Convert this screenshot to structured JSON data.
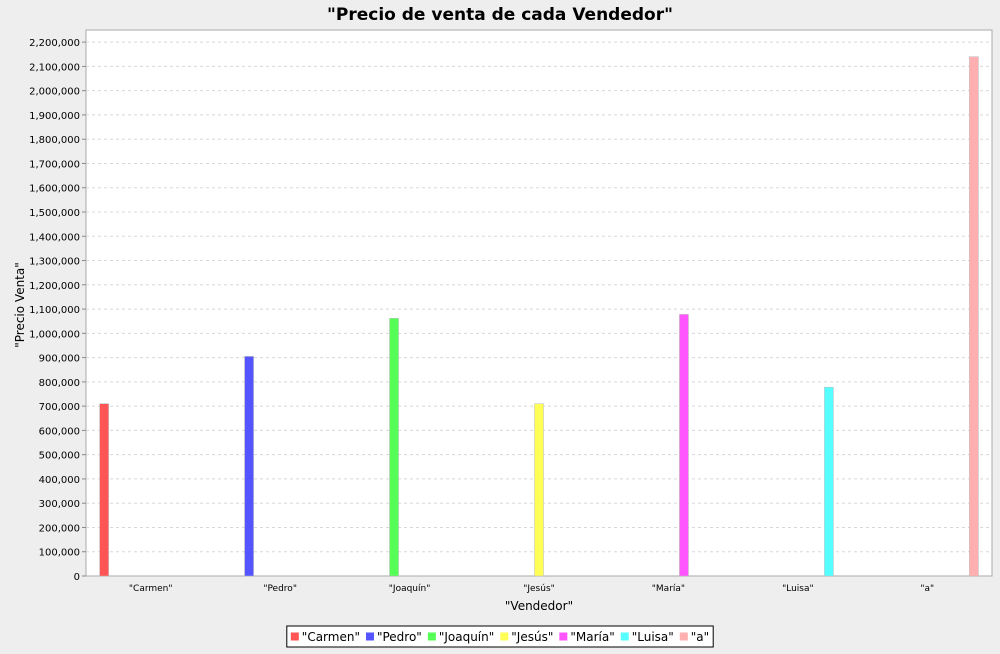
{
  "chart_data": {
    "type": "bar",
    "title": "\"Precio de venta de cada Vendedor\"",
    "xlabel": "\"Vendedor\"",
    "ylabel": "\"Precio Venta\"",
    "categories": [
      "\"Carmen\"",
      "\"Pedro\"",
      "\"Joaquín\"",
      "\"Jesús\"",
      "\"María\"",
      "\"Luisa\"",
      "\"a\""
    ],
    "series": [
      {
        "name": "\"Carmen\"",
        "color": "#ff5555",
        "values": [
          710000,
          null,
          null,
          null,
          null,
          null,
          null
        ]
      },
      {
        "name": "\"Pedro\"",
        "color": "#5555ff",
        "values": [
          null,
          905000,
          null,
          null,
          null,
          null,
          null
        ]
      },
      {
        "name": "\"Joaquín\"",
        "color": "#55ff55",
        "values": [
          null,
          null,
          1062000,
          null,
          null,
          null,
          null
        ]
      },
      {
        "name": "\"Jesús\"",
        "color": "#ffff55",
        "values": [
          null,
          null,
          null,
          710000,
          null,
          null,
          null
        ]
      },
      {
        "name": "\"María\"",
        "color": "#ff55ff",
        "values": [
          null,
          null,
          null,
          null,
          1078000,
          null,
          null
        ]
      },
      {
        "name": "\"Luisa\"",
        "color": "#55ffff",
        "values": [
          null,
          null,
          null,
          null,
          null,
          778000,
          null
        ]
      },
      {
        "name": "\"a\"",
        "color": "#ffafaf",
        "values": [
          null,
          null,
          null,
          null,
          null,
          null,
          2140000
        ]
      }
    ],
    "ylim": [
      0,
      2250000
    ],
    "yticks": [
      0,
      100000,
      200000,
      300000,
      400000,
      500000,
      600000,
      700000,
      800000,
      900000,
      1000000,
      1100000,
      1200000,
      1300000,
      1400000,
      1500000,
      1600000,
      1700000,
      1800000,
      1900000,
      2000000,
      2100000,
      2200000
    ],
    "ytick_labels": [
      "0",
      "100,000",
      "200,000",
      "300,000",
      "400,000",
      "500,000",
      "600,000",
      "700,000",
      "800,000",
      "900,000",
      "1,000,000",
      "1,100,000",
      "1,200,000",
      "1,300,000",
      "1,400,000",
      "1,500,000",
      "1,600,000",
      "1,700,000",
      "1,800,000",
      "1,900,000",
      "2,000,000",
      "2,100,000",
      "2,200,000"
    ],
    "grid": true,
    "legend_position": "bottom-center"
  },
  "colors": {
    "background": "#eeeeee",
    "plot_background": "#ffffff",
    "gridline": "#d8d8d8",
    "axis": "#888888",
    "text": "#000000"
  }
}
